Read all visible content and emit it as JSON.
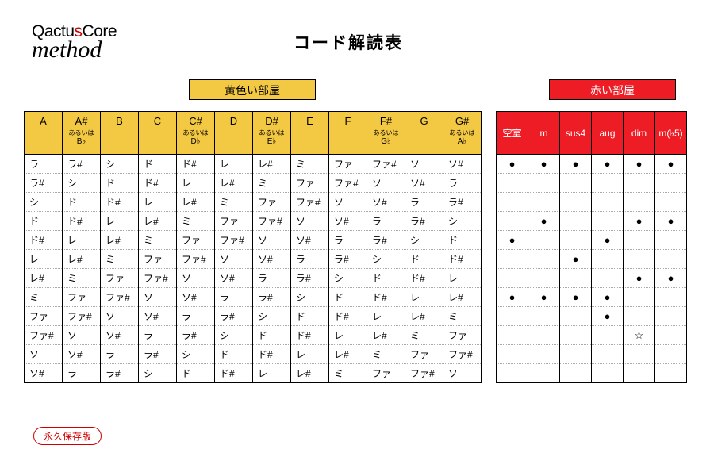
{
  "logo": {
    "part1": "Qactu",
    "s": "s",
    "part2": "Core",
    "line2": "method"
  },
  "title": "コード解読表",
  "yellow_label": "黄色い部屋",
  "red_label": "赤い部屋",
  "yellow_headers": [
    {
      "main": "A"
    },
    {
      "main": "A#",
      "aux": "あるいは",
      "alt": "B♭"
    },
    {
      "main": "B"
    },
    {
      "main": "C"
    },
    {
      "main": "C#",
      "aux": "あるいは",
      "alt": "D♭"
    },
    {
      "main": "D"
    },
    {
      "main": "D#",
      "aux": "あるいは",
      "alt": "E♭"
    },
    {
      "main": "E"
    },
    {
      "main": "F"
    },
    {
      "main": "F#",
      "aux": "あるいは",
      "alt": "G♭"
    },
    {
      "main": "G"
    },
    {
      "main": "G#",
      "aux": "あるいは",
      "alt": "A♭"
    }
  ],
  "yellow_rows": [
    [
      "ラ",
      "ラ#",
      "シ",
      "ド",
      "ド#",
      "レ",
      "レ#",
      "ミ",
      "ファ",
      "ファ#",
      "ソ",
      "ソ#"
    ],
    [
      "ラ#",
      "シ",
      "ド",
      "ド#",
      "レ",
      "レ#",
      "ミ",
      "ファ",
      "ファ#",
      "ソ",
      "ソ#",
      "ラ"
    ],
    [
      "シ",
      "ド",
      "ド#",
      "レ",
      "レ#",
      "ミ",
      "ファ",
      "ファ#",
      "ソ",
      "ソ#",
      "ラ",
      "ラ#"
    ],
    [
      "ド",
      "ド#",
      "レ",
      "レ#",
      "ミ",
      "ファ",
      "ファ#",
      "ソ",
      "ソ#",
      "ラ",
      "ラ#",
      "シ"
    ],
    [
      "ド#",
      "レ",
      "レ#",
      "ミ",
      "ファ",
      "ファ#",
      "ソ",
      "ソ#",
      "ラ",
      "ラ#",
      "シ",
      "ド"
    ],
    [
      "レ",
      "レ#",
      "ミ",
      "ファ",
      "ファ#",
      "ソ",
      "ソ#",
      "ラ",
      "ラ#",
      "シ",
      "ド",
      "ド#"
    ],
    [
      "レ#",
      "ミ",
      "ファ",
      "ファ#",
      "ソ",
      "ソ#",
      "ラ",
      "ラ#",
      "シ",
      "ド",
      "ド#",
      "レ"
    ],
    [
      "ミ",
      "ファ",
      "ファ#",
      "ソ",
      "ソ#",
      "ラ",
      "ラ#",
      "シ",
      "ド",
      "ド#",
      "レ",
      "レ#"
    ],
    [
      "ファ",
      "ファ#",
      "ソ",
      "ソ#",
      "ラ",
      "ラ#",
      "シ",
      "ド",
      "ド#",
      "レ",
      "レ#",
      "ミ"
    ],
    [
      "ファ#",
      "ソ",
      "ソ#",
      "ラ",
      "ラ#",
      "シ",
      "ド",
      "ド#",
      "レ",
      "レ#",
      "ミ",
      "ファ"
    ],
    [
      "ソ",
      "ソ#",
      "ラ",
      "ラ#",
      "シ",
      "ド",
      "ド#",
      "レ",
      "レ#",
      "ミ",
      "ファ",
      "ファ#"
    ],
    [
      "ソ#",
      "ラ",
      "ラ#",
      "シ",
      "ド",
      "ド#",
      "レ",
      "レ#",
      "ミ",
      "ファ",
      "ファ#",
      "ソ"
    ]
  ],
  "red_headers": [
    "空室",
    "m",
    "sus4",
    "aug",
    "dim",
    "m(♭5)"
  ],
  "red_rows": [
    [
      "●",
      "●",
      "●",
      "●",
      "●",
      "●"
    ],
    [
      "",
      "",
      "",
      "",
      "",
      ""
    ],
    [
      "",
      "",
      "",
      "",
      "",
      ""
    ],
    [
      "",
      "●",
      "",
      "",
      "●",
      "●"
    ],
    [
      "●",
      "",
      "",
      "●",
      "",
      ""
    ],
    [
      "",
      "",
      "●",
      "",
      "",
      ""
    ],
    [
      "",
      "",
      "",
      "",
      "●",
      "●"
    ],
    [
      "●",
      "●",
      "●",
      "●",
      "",
      ""
    ],
    [
      "",
      "",
      "",
      "●",
      "",
      ""
    ],
    [
      "",
      "",
      "",
      "",
      "☆",
      ""
    ],
    [
      "",
      "",
      "",
      "",
      "",
      ""
    ],
    [
      "",
      "",
      "",
      "",
      "",
      ""
    ]
  ],
  "badge": "永久保存版",
  "colors": {
    "yellow": "#f3c843",
    "red": "#ee1c25",
    "logo_red": "#cc0000"
  }
}
